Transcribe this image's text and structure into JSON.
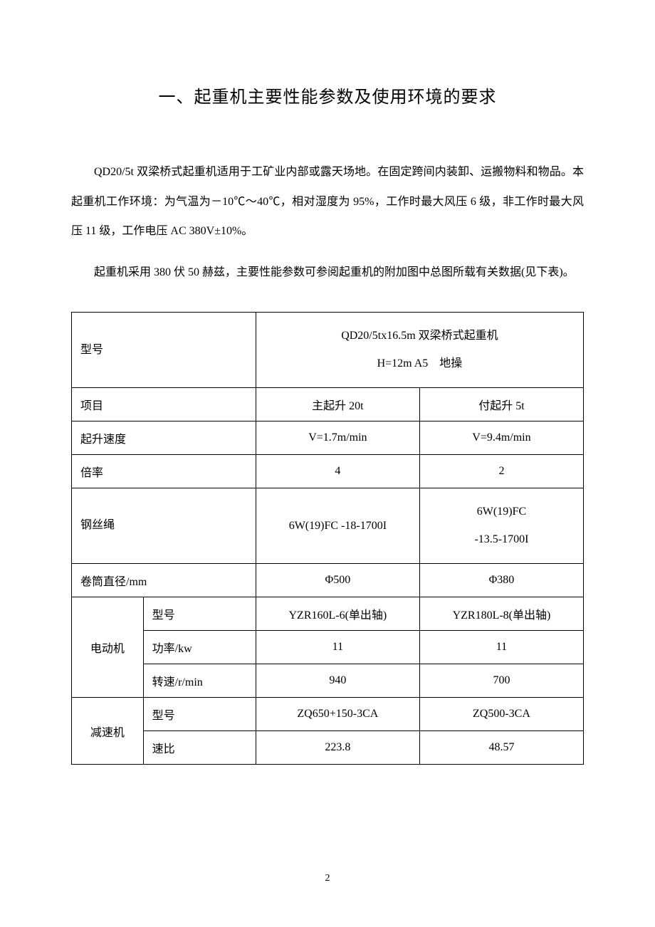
{
  "title": "一、起重机主要性能参数及使用环境的要求",
  "paragraphs": {
    "p1": "QD20/5t 双梁桥式起重机适用于工矿业内部或露天场地。在固定跨间内装卸、运搬物料和物品。本起重机工作环境：为气温为－10℃～40℃，相对湿度为 95%，工作时最大风压 6 级，非工作时最大风压 11 级，工作电压 AC 380V±10%。",
    "p2": "起重机采用 380 伏 50 赫兹，主要性能参数可参阅起重机的附加图中总图所载有关数据(见下表)。"
  },
  "table": {
    "header": {
      "model_label": "型号",
      "model_value_line1": "QD20/5tx16.5m 双梁桥式起重机",
      "model_value_line2": "H=12m A5　地操"
    },
    "row_item": {
      "label": "项目",
      "main": "主起升 20t",
      "aux": "付起升 5t"
    },
    "row_speed": {
      "label": "起升速度",
      "main": "V=1.7m/min",
      "aux": "V=9.4m/min"
    },
    "row_ratio": {
      "label": "倍率",
      "main": "4",
      "aux": "2"
    },
    "row_rope": {
      "label": "钢丝绳",
      "main": "6W(19)FC -18-1700I",
      "aux_line1": "6W(19)FC",
      "aux_line2": "-13.5-1700I"
    },
    "row_drum": {
      "label": "卷筒直径/mm",
      "main": "Φ500",
      "aux": "Φ380"
    },
    "motor": {
      "group_label": "电动机",
      "row_model": {
        "label": "型号",
        "main": "YZR160L-6(单出轴)",
        "aux": "YZR180L-8(单出轴)"
      },
      "row_power": {
        "label": "功率/kw",
        "main": "11",
        "aux": "11"
      },
      "row_rpm": {
        "label": "转速/r/min",
        "main": "940",
        "aux": "700"
      }
    },
    "reducer": {
      "group_label": "减速机",
      "row_model": {
        "label": "型号",
        "main": "ZQ650+150-3CA",
        "aux": "ZQ500-3CA"
      },
      "row_ratio": {
        "label": "速比",
        "main": "223.8",
        "aux": "48.57"
      }
    }
  },
  "page_number": "2"
}
